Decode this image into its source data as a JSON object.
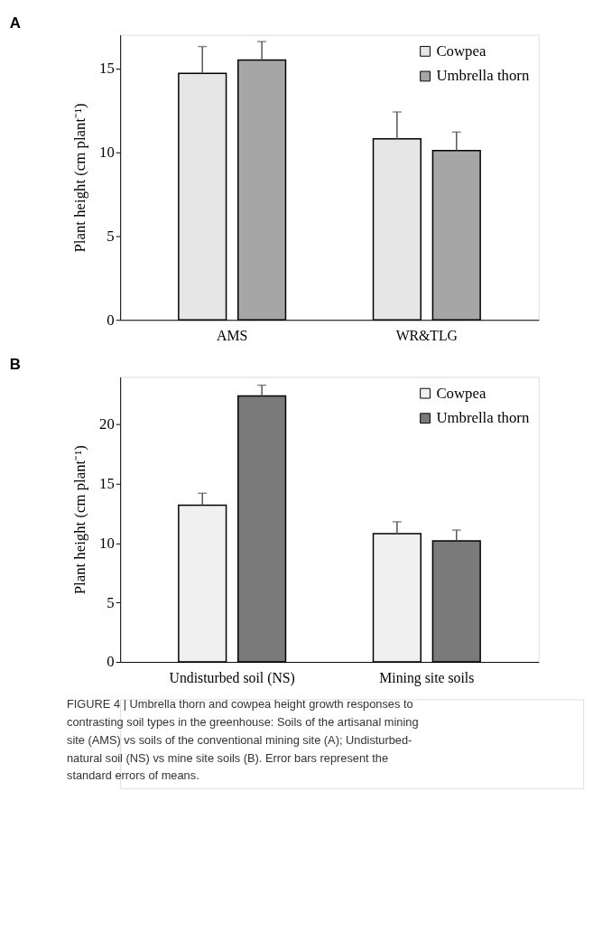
{
  "chart_data": [
    {
      "type": "bar",
      "title": "A",
      "ylabel": "Plant height (cm plant⁻¹)",
      "categories": [
        "AMS",
        "WR&TLG"
      ],
      "series": [
        {
          "name": "Cowpea",
          "color": "#e6e6e6",
          "values": [
            14.7,
            10.8
          ],
          "errors": [
            1.6,
            1.6
          ]
        },
        {
          "name": "Umbrella thorn",
          "color": "#a6a6a6",
          "values": [
            15.5,
            10.1
          ],
          "errors": [
            1.1,
            1.1
          ]
        }
      ],
      "ylim": [
        0,
        17
      ],
      "yticks": [
        0,
        5,
        10,
        15
      ],
      "grid": false,
      "legend": "top right"
    },
    {
      "type": "bar",
      "title": "B",
      "ylabel": "Plant height (cm plant⁻¹)",
      "categories": [
        "Undisturbed soil (NS)",
        "Mining site soils"
      ],
      "series": [
        {
          "name": "Cowpea",
          "color": "#f0f0f0",
          "values": [
            13.2,
            10.8
          ],
          "errors": [
            1.0,
            1.0
          ]
        },
        {
          "name": "Umbrella thorn",
          "color": "#7a7a7a",
          "values": [
            22.4,
            10.2
          ],
          "errors": [
            0.9,
            0.9
          ]
        }
      ],
      "ylim": [
        0,
        24
      ],
      "yticks": [
        0,
        5,
        10,
        15,
        20
      ],
      "grid": false,
      "legend": "top right",
      "annotations": [
        "FIGURE 4 | Umbrella thorn and cowpea height growth responses to contrasting soil types in the greenhouse: Soils of the artisanal mining site (AMS) vs soils of the conventional mining site (A); Undisturbed-natural soil (NS) vs mine site soils (B). Error bars represent the standard errors of means."
      ]
    }
  ]
}
